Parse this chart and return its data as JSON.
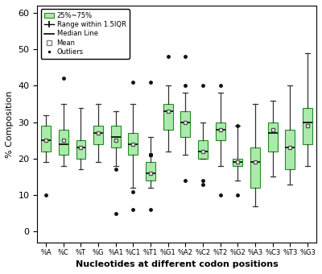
{
  "categories": [
    "%A",
    "%C",
    "%T",
    "%G",
    "%A1",
    "%C1",
    "%T1",
    "%G1",
    "%A2",
    "%C2",
    "%T2",
    "%G2",
    "%A3",
    "%C3",
    "%T3",
    "%G3"
  ],
  "boxes": [
    {
      "q1": 22,
      "median": 25,
      "q3": 29,
      "whislo": 19,
      "whishi": 32,
      "mean": 25,
      "fliers": [
        10
      ]
    },
    {
      "q1": 21,
      "median": 24,
      "q3": 28,
      "whislo": 18,
      "whishi": 35,
      "mean": 25,
      "fliers": [
        42
      ]
    },
    {
      "q1": 20,
      "median": 23,
      "q3": 25,
      "whislo": 17,
      "whishi": 34,
      "mean": 23,
      "fliers": []
    },
    {
      "q1": 24,
      "median": 27,
      "q3": 29,
      "whislo": 19,
      "whishi": 35,
      "mean": 27,
      "fliers": []
    },
    {
      "q1": 23,
      "median": 26,
      "q3": 29,
      "whislo": 18,
      "whishi": 33,
      "mean": 25,
      "fliers": [
        5,
        17
      ]
    },
    {
      "q1": 21,
      "median": 24,
      "q3": 27,
      "whislo": 12,
      "whishi": 35,
      "mean": 24,
      "fliers": [
        6,
        11,
        41
      ]
    },
    {
      "q1": 14,
      "median": 16,
      "q3": 19,
      "whislo": 12,
      "whishi": 26,
      "mean": 16,
      "fliers": [
        6,
        21,
        21,
        21,
        21,
        21,
        21,
        21,
        21,
        21,
        21,
        21,
        41
      ]
    },
    {
      "q1": 28,
      "median": 33,
      "q3": 35,
      "whislo": 22,
      "whishi": 40,
      "mean": 33,
      "fliers": [
        48
      ]
    },
    {
      "q1": 26,
      "median": 30,
      "q3": 33,
      "whislo": 21,
      "whishi": 38,
      "mean": 30,
      "fliers": [
        40,
        48,
        14
      ]
    },
    {
      "q1": 20,
      "median": 22,
      "q3": 25,
      "whislo": 20,
      "whishi": 30,
      "mean": 22,
      "fliers": [
        40,
        13,
        14
      ]
    },
    {
      "q1": 25,
      "median": 28,
      "q3": 30,
      "whislo": 18,
      "whishi": 38,
      "mean": 28,
      "fliers": [
        10,
        40
      ]
    },
    {
      "q1": 18,
      "median": 19,
      "q3": 20,
      "whislo": 14,
      "whishi": 29,
      "mean": 19,
      "fliers": [
        10,
        29
      ]
    },
    {
      "q1": 12,
      "median": 19,
      "q3": 23,
      "whislo": 7,
      "whishi": 35,
      "mean": 19,
      "fliers": []
    },
    {
      "q1": 22,
      "median": 27,
      "q3": 30,
      "whislo": 15,
      "whishi": 36,
      "mean": 28,
      "fliers": []
    },
    {
      "q1": 17,
      "median": 23,
      "q3": 28,
      "whislo": 13,
      "whishi": 40,
      "mean": 23,
      "fliers": []
    },
    {
      "q1": 24,
      "median": 30,
      "q3": 34,
      "whislo": 18,
      "whishi": 49,
      "mean": 29,
      "fliers": []
    }
  ],
  "ylabel": "% Composition",
  "xlabel": "Nucleotides at different codon positions",
  "ylim": [
    -3,
    62
  ],
  "yticks": [
    0,
    10,
    20,
    30,
    40,
    50,
    60
  ],
  "box_facecolor": "#aaeaaa",
  "box_edgecolor": "#228B22",
  "median_color": "#000000",
  "whisker_color": "#333333",
  "cap_color": "#333333",
  "mean_marker": "s",
  "mean_color": "white",
  "mean_edgecolor": "#555555",
  "flier_color": "#111111",
  "figsize": [
    4.0,
    3.4
  ],
  "dpi": 100,
  "legend_loc": "upper left"
}
